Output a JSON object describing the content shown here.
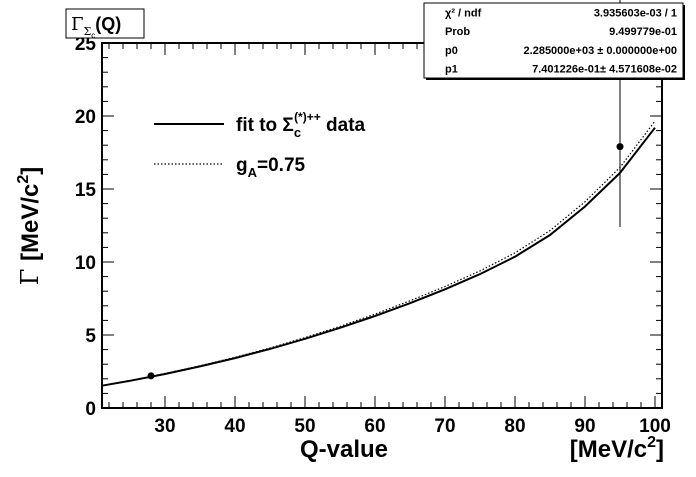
{
  "chart_data": {
    "type": "scatter",
    "title_parts": {
      "gamma": "Γ",
      "sub_main": "Σ",
      "sub_sub": "c",
      "rest": "(Q)"
    },
    "xlabel": "Q-value",
    "xunit": {
      "main": "[MeV/c",
      "sup": "2",
      "close": "]"
    },
    "ylabel": {
      "sym": "Γ",
      "unit": "[MeV/c",
      "sup": "2",
      "close": "]"
    },
    "xlim": [
      21,
      101
    ],
    "ylim": [
      0,
      25
    ],
    "x_ticks": [
      30,
      40,
      50,
      60,
      70,
      80,
      90,
      100
    ],
    "y_ticks": [
      0,
      5,
      10,
      15,
      20,
      25
    ],
    "points": [
      {
        "x": 28.0,
        "y": 2.2,
        "err_low": 0.15,
        "err_high": 0.15
      },
      {
        "x": 95.0,
        "y": 17.9,
        "err_low": 5.5,
        "err_high": 19.5
      }
    ],
    "series": [
      {
        "name": "fit",
        "style": "solid",
        "x": [
          21,
          25,
          30,
          35,
          40,
          45,
          50,
          55,
          60,
          65,
          70,
          75,
          80,
          85,
          90,
          95,
          100
        ],
        "y": [
          1.53,
          1.86,
          2.33,
          2.85,
          3.42,
          4.05,
          4.74,
          5.49,
          6.3,
          7.18,
          8.13,
          9.17,
          10.36,
          11.85,
          13.8,
          16.1,
          19.2
        ]
      },
      {
        "name": "gA=0.75",
        "style": "dotted",
        "x": [
          21,
          25,
          30,
          35,
          40,
          45,
          50,
          55,
          60,
          65,
          70,
          75,
          80,
          85,
          90,
          95,
          100
        ],
        "y": [
          1.55,
          1.88,
          2.36,
          2.89,
          3.47,
          4.11,
          4.82,
          5.59,
          6.43,
          7.34,
          8.32,
          9.39,
          10.62,
          12.15,
          14.12,
          16.48,
          19.65
        ]
      }
    ],
    "legend": {
      "fit": {
        "text": "fit to Σ",
        "sub": "c",
        "sup": "(*)++",
        "tail": " data"
      },
      "ga": {
        "text": "g",
        "sub": "A",
        "tail": "=0.75"
      }
    },
    "stats": [
      {
        "label": "χ² / ndf",
        "value": "3.935603e-03 / 1"
      },
      {
        "label": "Prob",
        "value": "9.499779e-01"
      },
      {
        "label": "p0",
        "value": "2.285000e+03 ± 0.000000e+00"
      },
      {
        "label": "p1",
        "value": "7.401226e-01± 4.571608e-02"
      }
    ],
    "grid": false,
    "legend_placement": "top-left"
  }
}
